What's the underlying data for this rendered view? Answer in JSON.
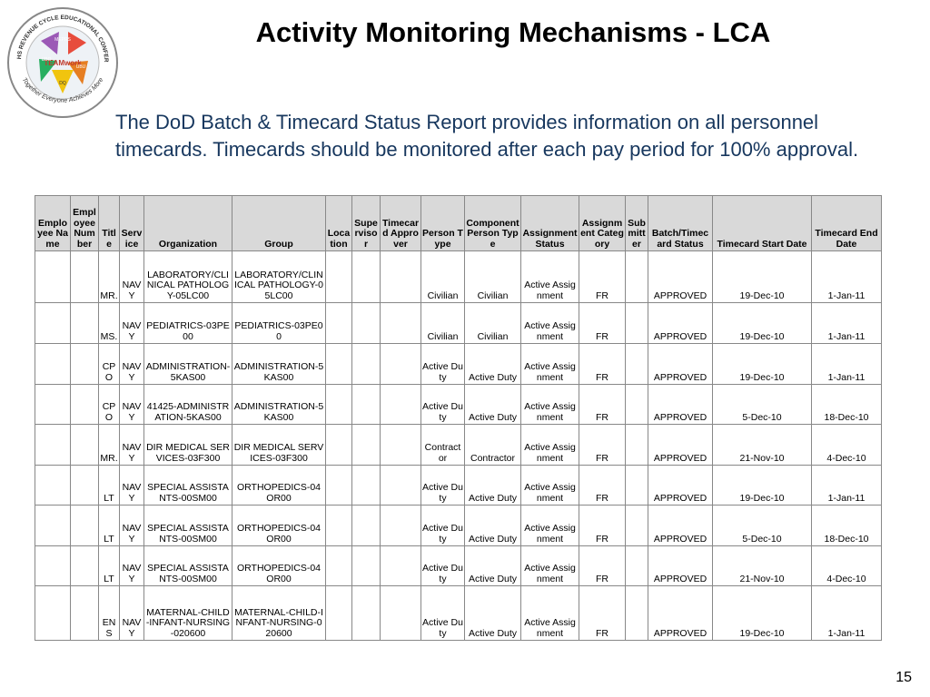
{
  "logo": {
    "ring_top": "2011 MHS REVENUE CYCLE EDUCATIONAL CONFERENCE",
    "ring_bottom": "Together Everyone Achieves More",
    "center": "TEAMwork",
    "tags": [
      "MEPRS",
      "UBO",
      "UBU",
      "DQ"
    ]
  },
  "header": {
    "title": "Activity Monitoring Mechanisms -  LCA"
  },
  "body": {
    "text": "The DoD Batch & Timecard Status Report provides information on all personnel timecards.  Timecards should be monitored after each pay period for 100% approval."
  },
  "table": {
    "columns": [
      "Employee Name",
      "Employee Number",
      "Title",
      "Service",
      "Organization",
      "Group",
      "Location",
      "Supervisor",
      "Timecard Approver",
      "Person Type",
      "Component Person Type",
      "Assignment Status",
      "Assignment Category",
      "Submitter",
      "Batch/Timecard Status",
      "Timecard Start Date",
      "Timecard End Date"
    ],
    "rows": [
      [
        null,
        null,
        "MR.",
        "NAVY",
        "LABORATORY/CLINICAL PATHOLOGY-05LC00",
        "LABORATORY/CLINICAL PATHOLOGY-05LC00",
        null,
        null,
        null,
        "Civilian",
        "Civilian",
        "Active Assignment",
        "FR",
        null,
        "APPROVED",
        "19-Dec-10",
        "1-Jan-11"
      ],
      [
        null,
        null,
        "MS.",
        "NAVY",
        "PEDIATRICS-03PE00",
        "PEDIATRICS-03PE00",
        null,
        null,
        null,
        "Civilian",
        "Civilian",
        "Active Assignment",
        "FR",
        null,
        "APPROVED",
        "19-Dec-10",
        "1-Jan-11"
      ],
      [
        null,
        null,
        "CPO",
        "NAVY",
        "ADMINISTRATION-5KAS00",
        "ADMINISTRATION-5KAS00",
        null,
        null,
        null,
        "Active Duty",
        "Active Duty",
        "Active Assignment",
        "FR",
        null,
        "APPROVED",
        "19-Dec-10",
        "1-Jan-11"
      ],
      [
        null,
        null,
        "CPO",
        "NAVY",
        "41425-ADMINISTRATION-5KAS00",
        "ADMINISTRATION-5KAS00",
        null,
        null,
        null,
        "Active Duty",
        "Active Duty",
        "Active Assignment",
        "FR",
        null,
        "APPROVED",
        "5-Dec-10",
        "18-Dec-10"
      ],
      [
        null,
        null,
        "MR.",
        "NAVY",
        "DIR MEDICAL SERVICES-03F300",
        "DIR MEDICAL SERVICES-03F300",
        null,
        null,
        null,
        "Contractor",
        "Contractor",
        "Active Assignment",
        "FR",
        null,
        "APPROVED",
        "21-Nov-10",
        "4-Dec-10"
      ],
      [
        null,
        null,
        "LT",
        "NAVY",
        "SPECIAL ASSISTANTS-00SM00",
        "ORTHOPEDICS-04OR00",
        null,
        null,
        null,
        "Active Duty",
        "Active Duty",
        "Active Assignment",
        "FR",
        null,
        "APPROVED",
        "19-Dec-10",
        "1-Jan-11"
      ],
      [
        null,
        null,
        "LT",
        "NAVY",
        "SPECIAL ASSISTANTS-00SM00",
        "ORTHOPEDICS-04OR00",
        null,
        null,
        null,
        "Active Duty",
        "Active Duty",
        "Active Assignment",
        "FR",
        null,
        "APPROVED",
        "5-Dec-10",
        "18-Dec-10"
      ],
      [
        null,
        null,
        "LT",
        "NAVY",
        "SPECIAL ASSISTANTS-00SM00",
        "ORTHOPEDICS-04OR00",
        null,
        null,
        null,
        "Active Duty",
        "Active Duty",
        "Active Assignment",
        "FR",
        null,
        "APPROVED",
        "21-Nov-10",
        "4-Dec-10"
      ],
      [
        null,
        null,
        "ENS",
        "NAVY",
        "MATERNAL-CHILD-INFANT-NURSING-020600",
        "MATERNAL-CHILD-INFANT-NURSING-020600",
        null,
        null,
        null,
        "Active Duty",
        "Active Duty",
        "Active Assignment",
        "FR",
        null,
        "APPROVED",
        "19-Dec-10",
        "1-Jan-11"
      ]
    ]
  },
  "footer": {
    "page": "15"
  }
}
